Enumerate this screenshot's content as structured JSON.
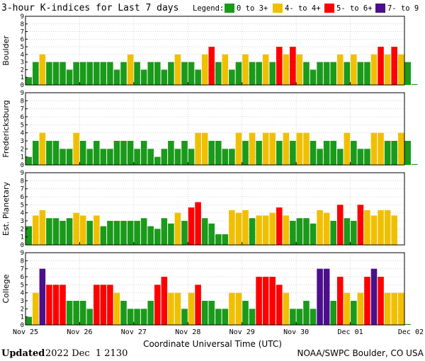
{
  "chart_data": {
    "type": "bar",
    "title": "3-hour K-indices for Last 7 days",
    "legend": {
      "label": "Legend:",
      "placement": "top-right",
      "entries": [
        {
          "label": "0 to 3+",
          "color": "#1a9a1a"
        },
        {
          "label": "4- to 4+",
          "color": "#f0c000"
        },
        {
          "label": "5- to 6+",
          "color": "#ff0000"
        },
        {
          "label": "7- to 9",
          "color": "#4b0f8c"
        }
      ]
    },
    "xlabel": "Coordinate Universal Time (UTC)",
    "x_ticks": [
      "Nov 25",
      "Nov 26",
      "Nov 27",
      "Nov 28",
      "Nov 29",
      "Nov 30",
      "Dec 01",
      "Dec 02"
    ],
    "y_ticks": [
      "0",
      "1",
      "2",
      "3",
      "4",
      "5",
      "6",
      "7",
      "8",
      "9"
    ],
    "ylim": [
      0,
      9
    ],
    "grid": true,
    "intervals_per_day": 8,
    "panels": [
      {
        "name": "Boulder",
        "values": [
          1,
          3,
          4,
          3,
          3,
          3,
          2,
          3,
          3,
          3,
          3,
          3,
          3,
          2,
          3,
          4,
          3,
          2,
          3,
          3,
          2,
          3,
          4,
          3,
          3,
          2,
          4,
          5,
          3,
          4,
          2,
          3,
          4,
          3,
          3,
          4,
          3,
          5,
          4,
          5,
          4,
          3,
          2,
          3,
          3,
          3,
          4,
          3,
          4,
          3,
          3,
          4,
          5,
          4,
          5,
          4,
          3,
          0.1
        ]
      },
      {
        "name": "Fredericksburg",
        "values": [
          1,
          3,
          4,
          3,
          3,
          2,
          2,
          4,
          3,
          2,
          3,
          2,
          2,
          3,
          3,
          3,
          2,
          3,
          2,
          1,
          2,
          3,
          2,
          3,
          2,
          4,
          4,
          3,
          3,
          2,
          2,
          4,
          3,
          4,
          3,
          4,
          4,
          3,
          4,
          3,
          4,
          4,
          3,
          2,
          3,
          3,
          2,
          4,
          3,
          2,
          2,
          4,
          4,
          3,
          3,
          4,
          3,
          0.1
        ]
      },
      {
        "name": "Est. Planetary",
        "values": [
          2.333,
          3.667,
          4.333,
          3.333,
          3.333,
          3,
          3.333,
          4,
          3.667,
          3,
          3.667,
          2.333,
          3,
          3,
          3,
          3,
          3,
          3.333,
          2.333,
          2,
          3.333,
          2.667,
          4,
          3,
          4.667,
          5.333,
          3.333,
          2.667,
          1.333,
          1.333,
          4.333,
          4,
          4.333,
          3.333,
          3.667,
          3.667,
          4,
          4.667,
          3.667,
          3,
          3.333,
          3.333,
          2.667,
          4.333,
          4,
          3,
          5,
          3.333,
          3,
          5,
          4.333,
          3.667,
          4.333,
          4.333,
          3.667
        ]
      },
      {
        "name": "College",
        "values": [
          1,
          4,
          7,
          5,
          5,
          5,
          3,
          3,
          3,
          2,
          5,
          5,
          5,
          4,
          3,
          2,
          2,
          2,
          3,
          5,
          6,
          4,
          4,
          2,
          4,
          5,
          3,
          3,
          2,
          2,
          4,
          4,
          3,
          2,
          6,
          6,
          6,
          5,
          4,
          2,
          2,
          3,
          2,
          7,
          7,
          3,
          6,
          4,
          3,
          4,
          6,
          7,
          6,
          4,
          4,
          4,
          0.1
        ]
      }
    ]
  },
  "footer": {
    "updated_label": "Updated",
    "updated_value": "2022 Dec  1 2130",
    "credit": "NOAA/SWPC Boulder, CO USA"
  }
}
